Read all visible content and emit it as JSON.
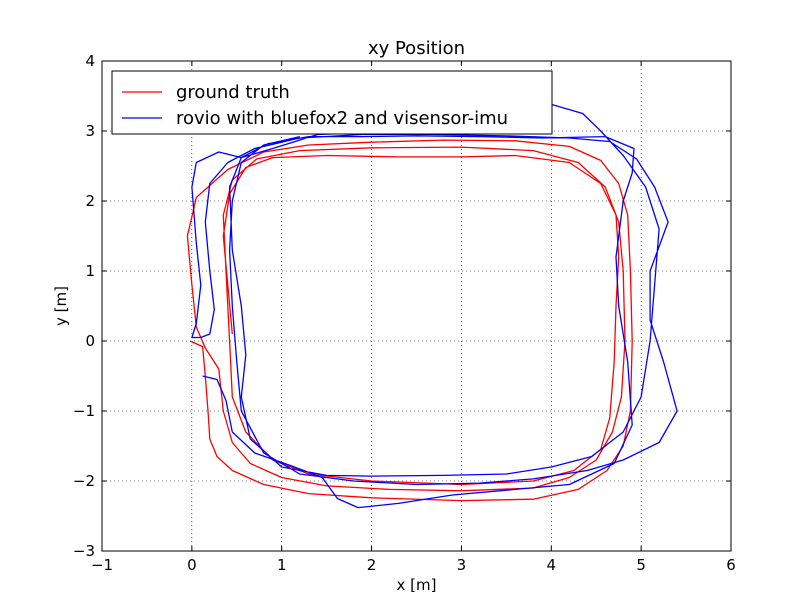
{
  "chart_data": {
    "type": "line",
    "title": "xy Position",
    "xlabel": "x [m]",
    "ylabel": "y [m]",
    "xlim": [
      -1,
      6
    ],
    "ylim": [
      -3,
      4
    ],
    "xticks": [
      -1,
      0,
      1,
      2,
      3,
      4,
      5,
      6
    ],
    "yticks": [
      -3,
      -2,
      -1,
      0,
      1,
      2,
      3,
      4
    ],
    "xtick_labels": [
      "−1",
      "0",
      "1",
      "2",
      "3",
      "4",
      "5",
      "6"
    ],
    "ytick_labels": [
      "−3",
      "−2",
      "−1",
      "0",
      "1",
      "2",
      "3",
      "4"
    ],
    "grid": true,
    "legend_position": "top-left",
    "series": [
      {
        "name": "ground truth",
        "color": "#ff0000",
        "points": [
          [
            -0.02,
            0.0
          ],
          [
            0.12,
            -0.08
          ],
          [
            0.15,
            -0.5
          ],
          [
            0.18,
            -1.0
          ],
          [
            0.2,
            -1.4
          ],
          [
            0.28,
            -1.65
          ],
          [
            0.45,
            -1.85
          ],
          [
            0.8,
            -2.05
          ],
          [
            1.3,
            -2.18
          ],
          [
            2.0,
            -2.24
          ],
          [
            3.0,
            -2.28
          ],
          [
            3.8,
            -2.26
          ],
          [
            4.3,
            -2.12
          ],
          [
            4.62,
            -1.85
          ],
          [
            4.8,
            -1.5
          ],
          [
            4.88,
            -1.0
          ],
          [
            4.9,
            0.0
          ],
          [
            4.88,
            1.0
          ],
          [
            4.85,
            1.8
          ],
          [
            4.75,
            2.25
          ],
          [
            4.55,
            2.58
          ],
          [
            4.2,
            2.78
          ],
          [
            3.6,
            2.86
          ],
          [
            2.8,
            2.87
          ],
          [
            2.0,
            2.84
          ],
          [
            1.3,
            2.8
          ],
          [
            0.8,
            2.7
          ],
          [
            0.4,
            2.45
          ],
          [
            0.05,
            2.05
          ],
          [
            -0.05,
            1.5
          ],
          [
            0.0,
            0.8
          ],
          [
            0.05,
            0.2
          ],
          [
            0.15,
            -0.1
          ],
          [
            0.3,
            -0.4
          ],
          [
            0.35,
            -1.0
          ],
          [
            0.45,
            -1.45
          ],
          [
            0.65,
            -1.75
          ],
          [
            1.0,
            -1.95
          ],
          [
            1.5,
            -2.07
          ],
          [
            2.2,
            -2.12
          ],
          [
            3.0,
            -2.14
          ],
          [
            3.8,
            -2.1
          ],
          [
            4.2,
            -1.95
          ],
          [
            4.5,
            -1.7
          ],
          [
            4.68,
            -1.3
          ],
          [
            4.78,
            -0.8
          ],
          [
            4.82,
            0.0
          ],
          [
            4.8,
            1.0
          ],
          [
            4.75,
            1.7
          ],
          [
            4.6,
            2.2
          ],
          [
            4.3,
            2.55
          ],
          [
            3.8,
            2.72
          ],
          [
            3.0,
            2.77
          ],
          [
            2.0,
            2.76
          ],
          [
            1.2,
            2.72
          ],
          [
            0.72,
            2.6
          ],
          [
            0.45,
            2.3
          ],
          [
            0.35,
            1.8
          ],
          [
            0.38,
            1.0
          ],
          [
            0.42,
            0.0
          ],
          [
            0.45,
            -0.8
          ],
          [
            0.6,
            -1.3
          ],
          [
            0.9,
            -1.7
          ],
          [
            1.3,
            -1.9
          ],
          [
            2.0,
            -2.0
          ],
          [
            3.0,
            -2.05
          ],
          [
            3.8,
            -2.0
          ],
          [
            4.25,
            -1.85
          ],
          [
            4.55,
            -1.55
          ],
          [
            4.65,
            -1.1
          ],
          [
            4.7,
            -0.3
          ],
          [
            4.72,
            0.5
          ],
          [
            4.75,
            1.2
          ],
          [
            4.72,
            1.8
          ],
          [
            4.55,
            2.25
          ],
          [
            4.2,
            2.55
          ],
          [
            3.6,
            2.65
          ],
          [
            3.0,
            2.63
          ],
          [
            2.3,
            2.63
          ],
          [
            1.5,
            2.65
          ],
          [
            0.9,
            2.62
          ],
          [
            0.6,
            2.48
          ],
          [
            0.42,
            2.1
          ],
          [
            0.35,
            1.5
          ],
          [
            0.4,
            0.8
          ],
          [
            0.45,
            0.1
          ]
        ]
      },
      {
        "name": "rovio with bluefox2 and visensor-imu",
        "color": "#0000ff",
        "points": [
          [
            0.12,
            -0.5
          ],
          [
            0.28,
            -0.55
          ],
          [
            0.38,
            -0.85
          ],
          [
            0.45,
            -1.3
          ],
          [
            0.7,
            -1.6
          ],
          [
            1.1,
            -1.78
          ],
          [
            1.45,
            -1.95
          ],
          [
            1.62,
            -2.25
          ],
          [
            1.85,
            -2.38
          ],
          [
            2.3,
            -2.32
          ],
          [
            2.9,
            -2.2
          ],
          [
            3.6,
            -2.12
          ],
          [
            4.2,
            -2.05
          ],
          [
            4.7,
            -1.75
          ],
          [
            4.9,
            -1.2
          ],
          [
            4.85,
            -0.3
          ],
          [
            4.75,
            0.5
          ],
          [
            4.72,
            1.2
          ],
          [
            4.8,
            2.0
          ],
          [
            4.9,
            2.4
          ],
          [
            4.92,
            2.75
          ],
          [
            4.6,
            2.92
          ],
          [
            3.9,
            2.9
          ],
          [
            3.2,
            2.92
          ],
          [
            2.5,
            2.93
          ],
          [
            1.9,
            2.92
          ],
          [
            1.3,
            2.92
          ],
          [
            0.85,
            2.82
          ],
          [
            0.55,
            2.62
          ],
          [
            0.42,
            2.2
          ],
          [
            0.45,
            1.3
          ],
          [
            0.55,
            0.5
          ],
          [
            0.6,
            -0.2
          ],
          [
            0.55,
            -0.8
          ],
          [
            0.65,
            -1.4
          ],
          [
            1.0,
            -1.8
          ],
          [
            1.5,
            -1.92
          ],
          [
            2.0,
            -1.93
          ],
          [
            2.8,
            -1.92
          ],
          [
            3.5,
            -1.9
          ],
          [
            4.0,
            -1.8
          ],
          [
            4.45,
            -1.65
          ],
          [
            4.8,
            -1.3
          ],
          [
            5.0,
            -0.8
          ],
          [
            5.1,
            0.0
          ],
          [
            5.15,
            0.8
          ],
          [
            5.2,
            1.6
          ],
          [
            5.05,
            2.2
          ],
          [
            4.8,
            2.65
          ],
          [
            4.55,
            3.0
          ],
          [
            4.35,
            3.25
          ],
          [
            4.0,
            3.38
          ],
          [
            3.4,
            3.3
          ],
          [
            2.7,
            3.1
          ],
          [
            2.0,
            2.98
          ],
          [
            1.4,
            2.95
          ],
          [
            0.9,
            2.75
          ],
          [
            0.55,
            2.62
          ],
          [
            0.3,
            2.7
          ],
          [
            0.05,
            2.55
          ],
          [
            0.0,
            2.2
          ],
          [
            0.05,
            1.4
          ],
          [
            0.1,
            0.8
          ],
          [
            0.05,
            0.25
          ],
          [
            0.0,
            0.05
          ],
          [
            0.1,
            0.05
          ],
          [
            0.2,
            0.1
          ],
          [
            0.25,
            0.45
          ],
          [
            0.2,
            1.0
          ],
          [
            0.15,
            1.7
          ],
          [
            0.2,
            2.25
          ],
          [
            0.4,
            2.55
          ],
          [
            0.7,
            2.75
          ],
          [
            1.2,
            2.9
          ],
          [
            1.9,
            2.95
          ],
          [
            2.7,
            2.95
          ],
          [
            3.5,
            2.93
          ],
          [
            4.2,
            2.9
          ],
          [
            4.65,
            2.85
          ],
          [
            4.95,
            2.6
          ],
          [
            5.15,
            2.2
          ],
          [
            5.3,
            1.7
          ],
          [
            5.1,
            1.0
          ],
          [
            5.1,
            0.3
          ],
          [
            5.25,
            -0.3
          ],
          [
            5.4,
            -1.0
          ],
          [
            5.2,
            -1.45
          ],
          [
            4.8,
            -1.7
          ],
          [
            4.4,
            -1.85
          ],
          [
            3.8,
            -1.97
          ],
          [
            3.2,
            -2.03
          ],
          [
            2.5,
            -2.05
          ],
          [
            1.8,
            -2.0
          ],
          [
            1.2,
            -1.9
          ],
          [
            0.8,
            -1.6
          ],
          [
            0.55,
            -1.0
          ],
          [
            0.5,
            -0.3
          ],
          [
            0.45,
            0.5
          ],
          [
            0.42,
            1.3
          ],
          [
            0.45,
            2.0
          ],
          [
            0.55,
            2.55
          ],
          [
            0.8,
            2.8
          ],
          [
            1.2,
            2.92
          ]
        ]
      }
    ]
  }
}
